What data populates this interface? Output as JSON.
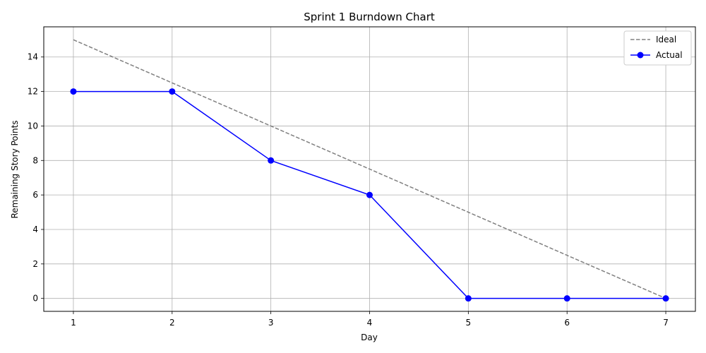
{
  "chart_data": {
    "type": "line",
    "title": "Sprint 1 Burndown Chart",
    "xlabel": "Day",
    "ylabel": "Remaining Story Points",
    "x": [
      1,
      2,
      3,
      4,
      5,
      6,
      7
    ],
    "xlim": [
      0.7,
      7.3
    ],
    "ylim": [
      -0.75,
      15.75
    ],
    "xticks": [
      1,
      2,
      3,
      4,
      5,
      6,
      7
    ],
    "yticks": [
      0,
      2,
      4,
      6,
      8,
      10,
      12,
      14
    ],
    "grid": true,
    "legend": "top-right",
    "series": [
      {
        "name": "Ideal",
        "values": [
          15,
          12.5,
          10,
          7.5,
          5,
          2.5,
          0
        ],
        "color": "#808080",
        "style": "dashed",
        "markers": false
      },
      {
        "name": "Actual",
        "values": [
          12,
          12,
          8,
          6,
          0,
          0,
          0
        ],
        "color": "#0000ff",
        "style": "solid",
        "markers": true
      }
    ]
  }
}
